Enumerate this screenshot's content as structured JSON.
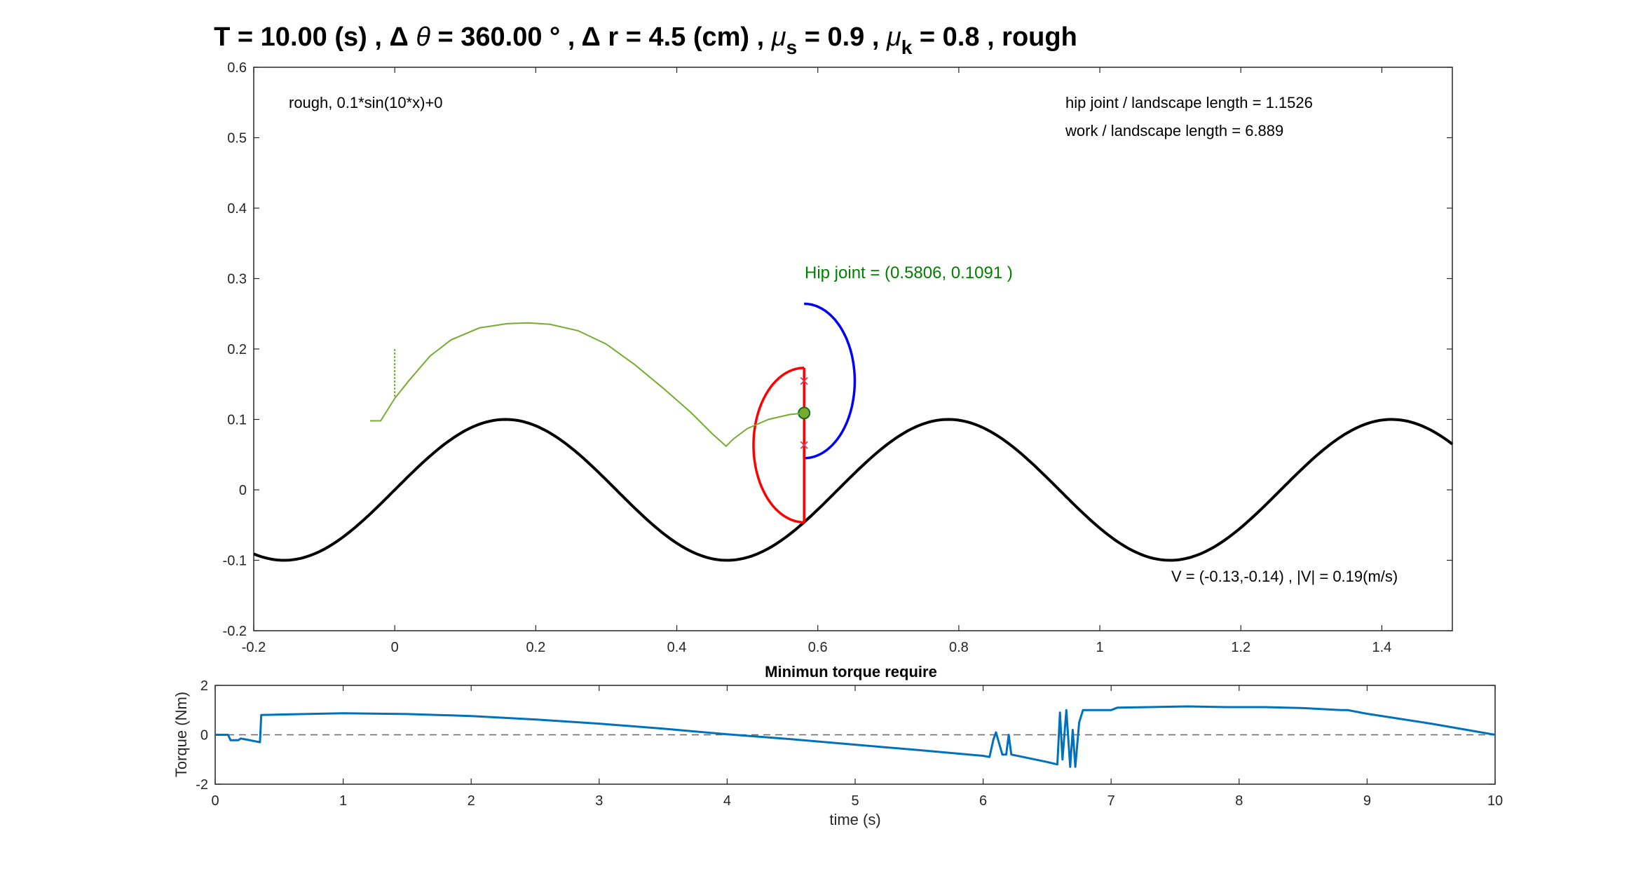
{
  "figure": {
    "title": {
      "part1": "T = 10.00 (s) , Δ ",
      "theta": "θ",
      "part2": " = 360.00 ° , Δ r = 4.5 (cm) , ",
      "mu": "μ",
      "sub_s": "s",
      "part3": " = 0.9 , ",
      "sub_k": "k",
      "part4": " = 0.8 , rough"
    }
  },
  "chart_data": [
    {
      "type": "line",
      "axes_id": "main",
      "xlim": [
        -0.2,
        1.5
      ],
      "ylim": [
        -0.2,
        0.6
      ],
      "x_ticks": [
        "-0.2",
        "0",
        "0.2",
        "0.4",
        "0.6",
        "0.8",
        "1",
        "1.2",
        "1.4"
      ],
      "y_ticks": [
        "-0.2",
        "-0.1",
        "0",
        "0.1",
        "0.2",
        "0.3",
        "0.4",
        "0.5",
        "0.6"
      ],
      "grid": false,
      "annotations": {
        "terrain": "rough, 0.1*sin(10*x)+0",
        "hip_ratio": "hip joint / landscape length  = 1.1526",
        "work_ratio": "work / landscape length = 6.889",
        "hip_joint": "Hip joint = (0.5806, 0.1091 )",
        "velocity": "V = (-0.13,-0.14) , |V| = 0.19(m/s)"
      },
      "series": [
        {
          "role": "landscape",
          "color": "#000000",
          "function": "0.1*sin(10*x)",
          "x_range": [
            -0.2,
            1.5
          ]
        },
        {
          "role": "blue-semicircle",
          "color": "#0000ff",
          "center": [
            0.5806,
            0.1546
          ],
          "radius": 0.1096,
          "side": "right"
        },
        {
          "role": "red-semicircle",
          "color": "#ff0000",
          "center": [
            0.5806,
            0.0636
          ],
          "radius": 0.1096,
          "side": "left"
        },
        {
          "role": "red-chord",
          "color": "#ff0000",
          "x": [
            0.5806,
            0.5806
          ],
          "y": [
            0.1732,
            -0.046
          ]
        },
        {
          "role": "markers",
          "color": "#d04060",
          "x": [
            0.5806,
            0.5806
          ],
          "y": [
            0.1546,
            0.0636
          ]
        },
        {
          "role": "hip-joint",
          "color": "#008000",
          "x": [
            0.5806
          ],
          "y": [
            0.1091
          ]
        },
        {
          "role": "trajectory",
          "color": "#77ac30",
          "x": [
            -0.035,
            -0.02,
            0.0,
            0.02,
            0.05,
            0.08,
            0.12,
            0.16,
            0.19,
            0.22,
            0.26,
            0.3,
            0.34,
            0.38,
            0.42,
            0.45,
            0.47,
            0.48,
            0.5,
            0.53,
            0.56,
            0.58
          ],
          "y": [
            0.098,
            0.098,
            0.13,
            0.155,
            0.19,
            0.213,
            0.23,
            0.236,
            0.237,
            0.235,
            0.226,
            0.207,
            0.178,
            0.145,
            0.11,
            0.08,
            0.062,
            0.072,
            0.087,
            0.1,
            0.107,
            0.109
          ]
        }
      ]
    },
    {
      "type": "line",
      "axes_id": "torque",
      "title": "Minimun torque require",
      "xlabel": "time (s)",
      "ylabel": "Torque (Nm)",
      "xlim": [
        0,
        10
      ],
      "ylim": [
        -2,
        2
      ],
      "x_ticks": [
        "0",
        "1",
        "2",
        "3",
        "4",
        "5",
        "6",
        "7",
        "8",
        "9",
        "10"
      ],
      "y_ticks": [
        "-2",
        "0",
        "2"
      ],
      "grid": false,
      "zero_line": true,
      "series": [
        {
          "role": "torque",
          "color": "#0072bd",
          "x": [
            0,
            0.1,
            0.12,
            0.18,
            0.2,
            0.25,
            0.3,
            0.35,
            0.36,
            0.5,
            1.0,
            1.5,
            2.0,
            2.5,
            3.0,
            3.5,
            4.0,
            4.5,
            5.0,
            5.5,
            6.0,
            6.05,
            6.08,
            6.1,
            6.15,
            6.18,
            6.2,
            6.22,
            6.5,
            6.58,
            6.6,
            6.62,
            6.65,
            6.68,
            6.7,
            6.72,
            6.75,
            6.78,
            7.0,
            7.05,
            7.3,
            7.6,
            7.9,
            8.2,
            8.5,
            8.8,
            8.85,
            9.0,
            9.5,
            10.0
          ],
          "y": [
            0.0,
            0.0,
            -0.22,
            -0.22,
            -0.15,
            -0.2,
            -0.25,
            -0.3,
            0.8,
            0.82,
            0.87,
            0.84,
            0.76,
            0.62,
            0.45,
            0.25,
            0.02,
            -0.18,
            -0.4,
            -0.62,
            -0.85,
            -0.9,
            -0.2,
            0.1,
            -0.8,
            -0.8,
            0.0,
            -0.8,
            -1.1,
            -1.2,
            0.9,
            -1.0,
            1.0,
            -1.3,
            0.2,
            -1.3,
            0.5,
            1.0,
            1.0,
            1.1,
            1.12,
            1.15,
            1.12,
            1.12,
            1.08,
            1.0,
            1.0,
            0.85,
            0.45,
            0.0
          ]
        }
      ]
    }
  ]
}
